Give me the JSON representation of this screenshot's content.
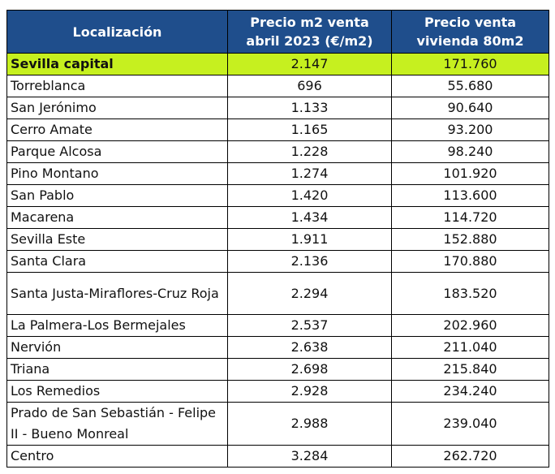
{
  "table": {
    "headers": {
      "location": "Localización",
      "price_m2": "Precio m2 venta abril 2023 (€/m2)",
      "price_home": "Precio venta vivienda 80m2"
    },
    "highlight_color": "#c6f01f",
    "header_color": "#1f4e8c",
    "rows": [
      {
        "name": "Sevilla capital",
        "price_m2": "2.147",
        "price_home": "171.760",
        "highlight": true
      },
      {
        "name": "Torreblanca",
        "price_m2": "696",
        "price_home": "55.680"
      },
      {
        "name": "San Jerónimo",
        "price_m2": "1.133",
        "price_home": "90.640"
      },
      {
        "name": "Cerro Amate",
        "price_m2": "1.165",
        "price_home": "93.200"
      },
      {
        "name": "Parque Alcosa",
        "price_m2": "1.228",
        "price_home": "98.240"
      },
      {
        "name": "Pino Montano",
        "price_m2": "1.274",
        "price_home": "101.920"
      },
      {
        "name": "San Pablo",
        "price_m2": "1.420",
        "price_home": "113.600"
      },
      {
        "name": "Macarena",
        "price_m2": "1.434",
        "price_home": "114.720"
      },
      {
        "name": "Sevilla Este",
        "price_m2": "1.911",
        "price_home": "152.880"
      },
      {
        "name": "Santa Clara",
        "price_m2": "2.136",
        "price_home": "170.880"
      },
      {
        "name": "Santa Justa-Miraflores-Cruz Roja",
        "price_m2": "2.294",
        "price_home": "183.520"
      },
      {
        "name": "La Palmera-Los Bermejales",
        "price_m2": "2.537",
        "price_home": "202.960"
      },
      {
        "name": "Nervión",
        "price_m2": "2.638",
        "price_home": "211.040"
      },
      {
        "name": "Triana",
        "price_m2": "2.698",
        "price_home": "215.840"
      },
      {
        "name": "Los Remedios",
        "price_m2": "2.928",
        "price_home": "234.240"
      },
      {
        "name": "Prado de San Sebastián - Felipe II - Bueno Monreal",
        "price_m2": "2.988",
        "price_home": "239.040"
      },
      {
        "name": "Centro",
        "price_m2": "3.284",
        "price_home": "262.720"
      }
    ]
  }
}
